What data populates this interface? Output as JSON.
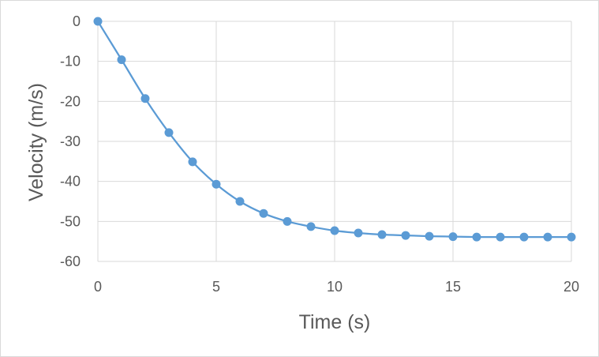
{
  "chart_data": {
    "type": "scatter",
    "title": "",
    "xlabel": "Time (s)",
    "ylabel": "Velocity (m/s)",
    "xlim": [
      0,
      20
    ],
    "ylim": [
      -60,
      0
    ],
    "xticks": [
      0,
      5,
      10,
      15,
      20
    ],
    "yticks": [
      0,
      -10,
      -20,
      -30,
      -40,
      -50,
      -60
    ],
    "grid": true,
    "legend": "none",
    "line_style": "smooth line with markers",
    "series": [
      {
        "color": "#5b9bd5",
        "x": [
          0,
          1,
          2,
          3,
          4,
          5,
          6,
          7,
          8,
          9,
          10,
          11,
          12,
          13,
          14,
          15,
          16,
          17,
          18,
          19,
          20
        ],
        "values": [
          0,
          -9.6,
          -19.3,
          -27.8,
          -35.1,
          -40.7,
          -45.0,
          -48.0,
          -50.0,
          -51.3,
          -52.3,
          -52.9,
          -53.3,
          -53.5,
          -53.7,
          -53.8,
          -53.9,
          -53.9,
          -53.9,
          -53.9,
          -53.9
        ]
      }
    ]
  }
}
